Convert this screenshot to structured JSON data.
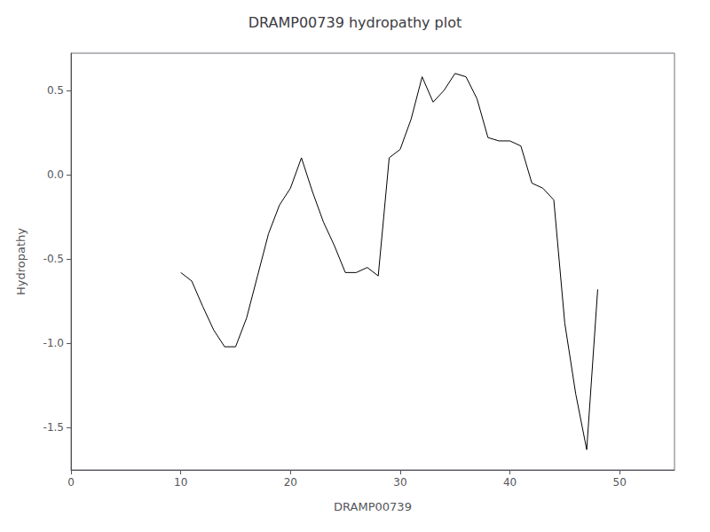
{
  "chart_data": {
    "type": "line",
    "title": "DRAMP00739 hydropathy plot",
    "xlabel": "DRAMP00739",
    "ylabel": "Hydropathy",
    "x": [
      10,
      11,
      12,
      13,
      14,
      15,
      16,
      17,
      18,
      19,
      20,
      21,
      22,
      23,
      24,
      25,
      26,
      27,
      28,
      29,
      30,
      31,
      32,
      33,
      34,
      35,
      36,
      37,
      38,
      39,
      40,
      41,
      42,
      43,
      44,
      45,
      46,
      47,
      48
    ],
    "values": [
      -0.58,
      -0.63,
      -0.78,
      -0.92,
      -1.02,
      -1.02,
      -0.85,
      -0.6,
      -0.35,
      -0.18,
      -0.08,
      0.1,
      -0.1,
      -0.28,
      -0.42,
      -0.58,
      -0.58,
      -0.55,
      -0.6,
      0.1,
      0.15,
      0.33,
      0.58,
      0.43,
      0.5,
      0.6,
      0.58,
      0.45,
      0.22,
      0.2,
      0.2,
      0.17,
      -0.05,
      -0.08,
      -0.15,
      -0.88,
      -1.3,
      -1.63,
      -0.68
    ],
    "color": "#000000",
    "xlim": [
      0,
      55
    ],
    "ylim": [
      -1.75,
      0.72
    ],
    "xticks": [
      0,
      10,
      20,
      30,
      40,
      50
    ],
    "yticks": [
      {
        "value": -1.5,
        "label": "-1.5"
      },
      {
        "value": -1,
        "label": "-1.0"
      },
      -0.5,
      {
        "value": 0,
        "label": "0.0"
      },
      0.5
    ],
    "grid": false
  }
}
